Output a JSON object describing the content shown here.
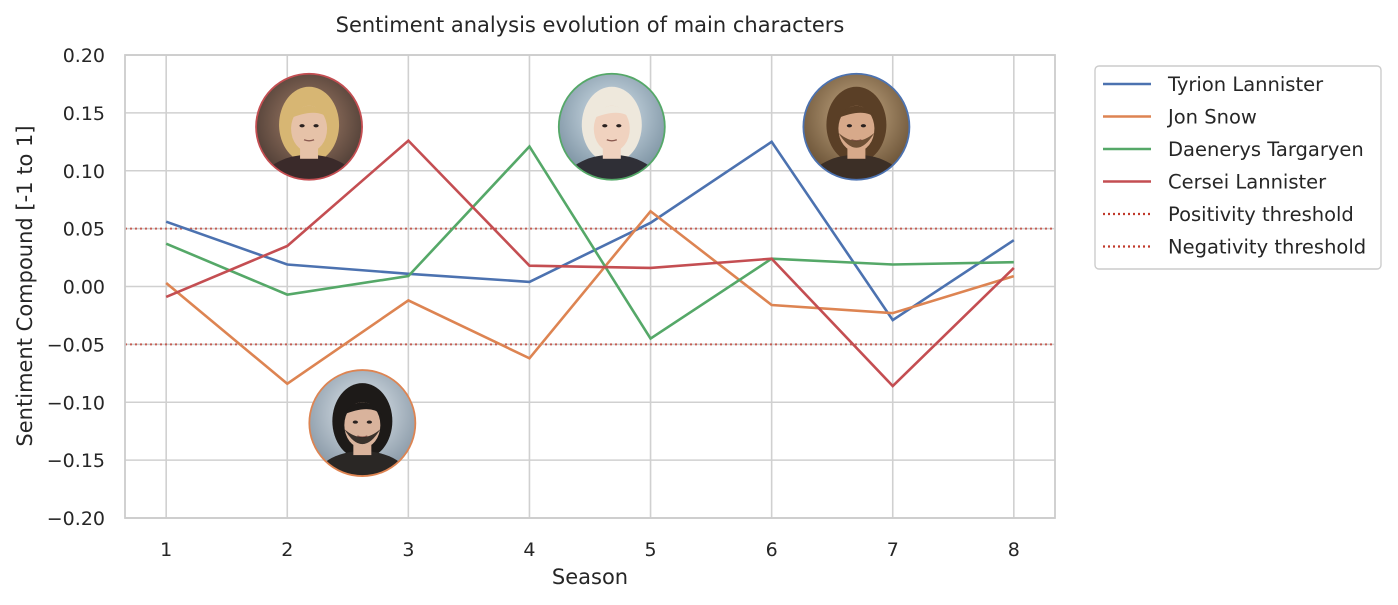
{
  "chart_data": {
    "type": "line",
    "title": "Sentiment analysis evolution of main characters",
    "xlabel": "Season",
    "ylabel": "Sentiment Compound [-1 to 1]",
    "x": [
      1,
      2,
      3,
      4,
      5,
      6,
      7,
      8
    ],
    "x_tick_labels": [
      "1",
      "2",
      "3",
      "4",
      "5",
      "6",
      "7",
      "8"
    ],
    "ylim": [
      -0.2,
      0.2
    ],
    "y_ticks": [
      0.2,
      0.15,
      0.1,
      0.05,
      0.0,
      -0.05,
      -0.1,
      -0.15,
      -0.2
    ],
    "y_tick_labels": [
      "0.20",
      "0.15",
      "0.10",
      "0.05",
      "0.00",
      "−0.05",
      "−0.10",
      "−0.15",
      "−0.20"
    ],
    "grid": true,
    "legend_position": "outside-right-top",
    "series": [
      {
        "name": "Tyrion Lannister",
        "color": "#4c72b0",
        "values": [
          0.056,
          0.019,
          0.011,
          0.004,
          0.055,
          0.125,
          -0.029,
          0.04
        ]
      },
      {
        "name": "Jon Snow",
        "color": "#dd8452",
        "values": [
          0.003,
          -0.084,
          -0.012,
          -0.062,
          0.065,
          -0.016,
          -0.023,
          0.009
        ]
      },
      {
        "name": "Daenerys Targaryen",
        "color": "#55a868",
        "values": [
          0.037,
          -0.007,
          0.009,
          0.121,
          -0.045,
          0.024,
          0.019,
          0.021
        ]
      },
      {
        "name": "Cersei Lannister",
        "color": "#c44e52",
        "values": [
          -0.009,
          0.035,
          0.126,
          0.018,
          0.016,
          0.024,
          -0.086,
          0.016
        ]
      }
    ],
    "thresholds": [
      {
        "name": "Positivity threshold",
        "value": 0.05,
        "color": "#c0392b",
        "style": "dotted"
      },
      {
        "name": "Negativity threshold",
        "value": -0.05,
        "color": "#c0392b",
        "style": "dotted"
      }
    ],
    "portraits": [
      {
        "character": "Cersei Lannister",
        "x": 2.18,
        "y": 0.138,
        "border_color": "#c44e52",
        "icon": "cersei-portrait-icon"
      },
      {
        "character": "Daenerys Targaryen",
        "x": 4.68,
        "y": 0.138,
        "border_color": "#55a868",
        "icon": "daenerys-portrait-icon"
      },
      {
        "character": "Tyrion Lannister",
        "x": 6.7,
        "y": 0.138,
        "border_color": "#4c72b0",
        "icon": "tyrion-portrait-icon"
      },
      {
        "character": "Jon Snow",
        "x": 2.62,
        "y": -0.118,
        "border_color": "#dd8452",
        "icon": "jon-snow-portrait-icon"
      }
    ]
  }
}
